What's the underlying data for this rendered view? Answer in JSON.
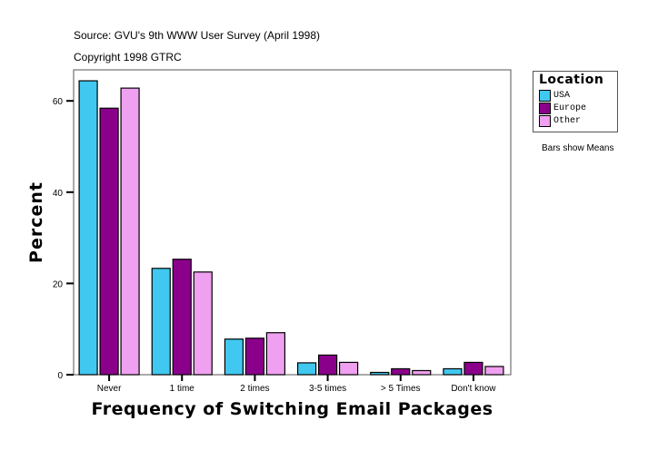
{
  "header": {
    "source": "Source: GVU's 9th WWW User Survey (April 1998)",
    "copyright": "Copyright 1998 GTRC"
  },
  "note": "Bars show Means",
  "chart_data": {
    "type": "bar",
    "xlabel": "Frequency of Switching Email Packages",
    "ylabel": "Percent",
    "categories": [
      "Never",
      "1 time",
      "2 times",
      "3-5 times",
      "> 5 Times",
      "Don't know"
    ],
    "series": [
      {
        "name": "USA",
        "color": "#40c8f0",
        "values": [
          64.4,
          23.3,
          7.8,
          2.6,
          0.5,
          1.3
        ]
      },
      {
        "name": "Europe",
        "color": "#8b008b",
        "values": [
          58.4,
          25.3,
          8.0,
          4.3,
          1.3,
          2.7
        ]
      },
      {
        "name": "Other",
        "color": "#f0a0f0",
        "values": [
          62.8,
          22.5,
          9.2,
          2.7,
          0.9,
          1.8
        ]
      }
    ],
    "yticks": [
      0,
      20,
      40,
      60
    ],
    "ylim": [
      0,
      66.8
    ],
    "legend": {
      "title": "Location",
      "placement": "right"
    },
    "grid": false
  }
}
